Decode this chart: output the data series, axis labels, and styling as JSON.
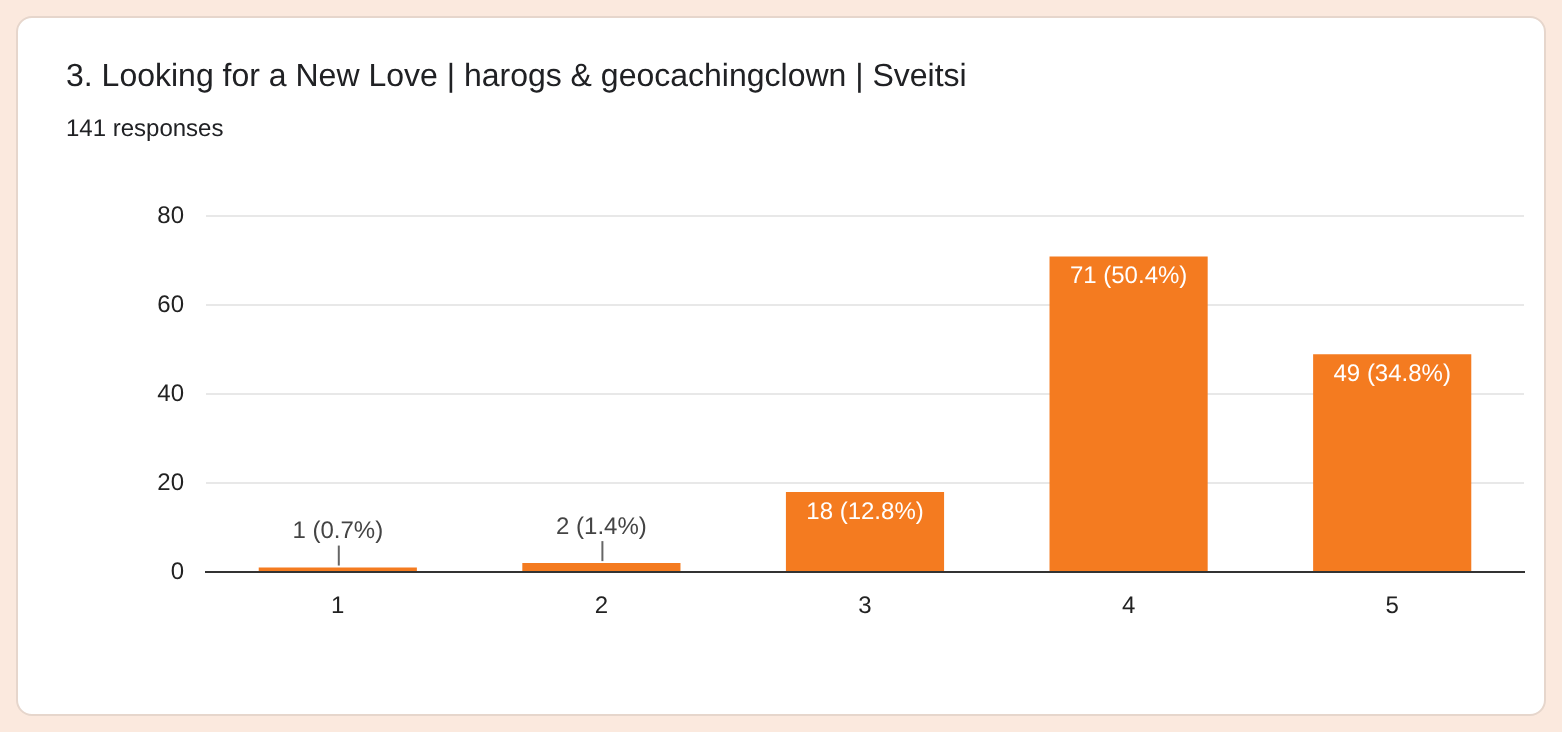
{
  "chart_data": {
    "type": "bar",
    "title": "3. Looking for a New Love | harogs & geocachingclown | Sveitsi",
    "subtitle": "141 responses",
    "categories": [
      "1",
      "2",
      "3",
      "4",
      "5"
    ],
    "values": [
      1,
      2,
      18,
      71,
      49
    ],
    "value_labels": [
      "1 (0.7%)",
      "2 (1.4%)",
      "18 (12.8%)",
      "71 (50.4%)",
      "49 (34.8%)"
    ],
    "color": "#f47b20",
    "ylim": [
      0,
      80
    ],
    "yticks": [
      0,
      20,
      40,
      60,
      80
    ],
    "grid": "y",
    "legend": false
  }
}
